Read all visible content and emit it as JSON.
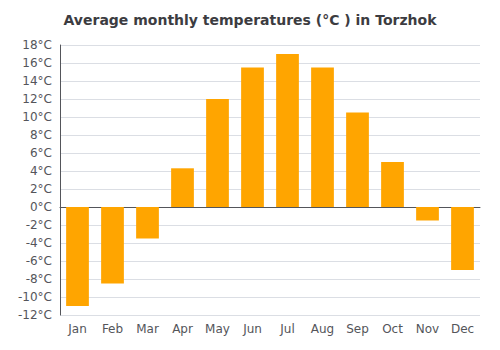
{
  "chart_data": {
    "type": "bar",
    "title": "Average monthly temperatures (°C ) in Torzhok",
    "categories": [
      "Jan",
      "Feb",
      "Mar",
      "Apr",
      "May",
      "Jun",
      "Jul",
      "Aug",
      "Sep",
      "Oct",
      "Nov",
      "Dec"
    ],
    "values": [
      -11,
      -8.5,
      -3.5,
      4.3,
      12,
      15.5,
      17,
      15.5,
      10.5,
      5,
      -1.5,
      -7
    ],
    "color": "#FFA500",
    "ylim": [
      -12,
      18
    ],
    "yticks": [
      {
        "value": -12,
        "label": "-12°C"
      },
      {
        "value": -10,
        "label": "-10°C"
      },
      {
        "value": -8,
        "label": "-8°C"
      },
      {
        "value": -6,
        "label": "-6°C"
      },
      {
        "value": -4,
        "label": "-4°C"
      },
      {
        "value": -2,
        "label": "-2°C"
      },
      {
        "value": 0,
        "label": "0°C"
      },
      {
        "value": 2,
        "label": "2°C"
      },
      {
        "value": 4,
        "label": "4°C"
      },
      {
        "value": 6,
        "label": "6°C"
      },
      {
        "value": 8,
        "label": "8°C"
      },
      {
        "value": 10,
        "label": "10°C"
      },
      {
        "value": 12,
        "label": "12°C"
      },
      {
        "value": 14,
        "label": "14°C"
      },
      {
        "value": 16,
        "label": "16°C"
      },
      {
        "value": 18,
        "label": "18°C"
      }
    ],
    "grid": true
  }
}
